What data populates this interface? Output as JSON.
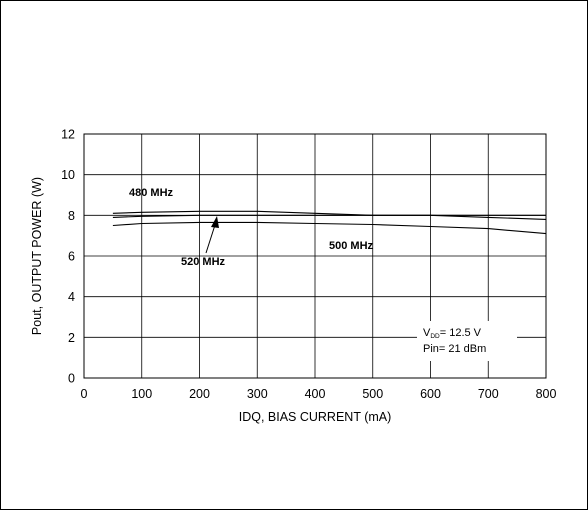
{
  "chart_data": {
    "type": "line",
    "title": "",
    "xlabel": "IDQ, BIAS CURRENT (mA)",
    "ylabel": "Pout, OUTPUT POWER (W)",
    "xlim": [
      0,
      800
    ],
    "ylim": [
      0,
      12
    ],
    "xticks": [
      "0",
      "100",
      "200",
      "300",
      "400",
      "500",
      "600",
      "700",
      "800"
    ],
    "yticks": [
      "0",
      "2",
      "4",
      "6",
      "8",
      "10",
      "12"
    ],
    "grid": true,
    "series": [
      {
        "name": "480 MHz",
        "x": [
          50,
          100,
          200,
          300,
          400,
          500,
          600,
          700,
          800
        ],
        "y": [
          8.1,
          8.15,
          8.2,
          8.2,
          8.1,
          8.0,
          8.0,
          7.9,
          7.8
        ]
      },
      {
        "name": "520 MHz",
        "x": [
          50,
          100,
          200,
          300,
          400,
          500,
          600,
          700,
          800
        ],
        "y": [
          7.9,
          7.95,
          8.0,
          8.0,
          8.0,
          8.0,
          8.0,
          8.0,
          8.0
        ]
      },
      {
        "name": "500 MHz",
        "x": [
          50,
          100,
          200,
          300,
          400,
          500,
          600,
          700,
          800
        ],
        "y": [
          7.5,
          7.6,
          7.65,
          7.65,
          7.6,
          7.55,
          7.45,
          7.35,
          7.1
        ]
      }
    ],
    "annotations": {
      "vdd_prefix": "V",
      "vdd_sub": "DD",
      "vdd_value": "= 12.5 V",
      "pin": "Pin= 21 dBm"
    }
  }
}
